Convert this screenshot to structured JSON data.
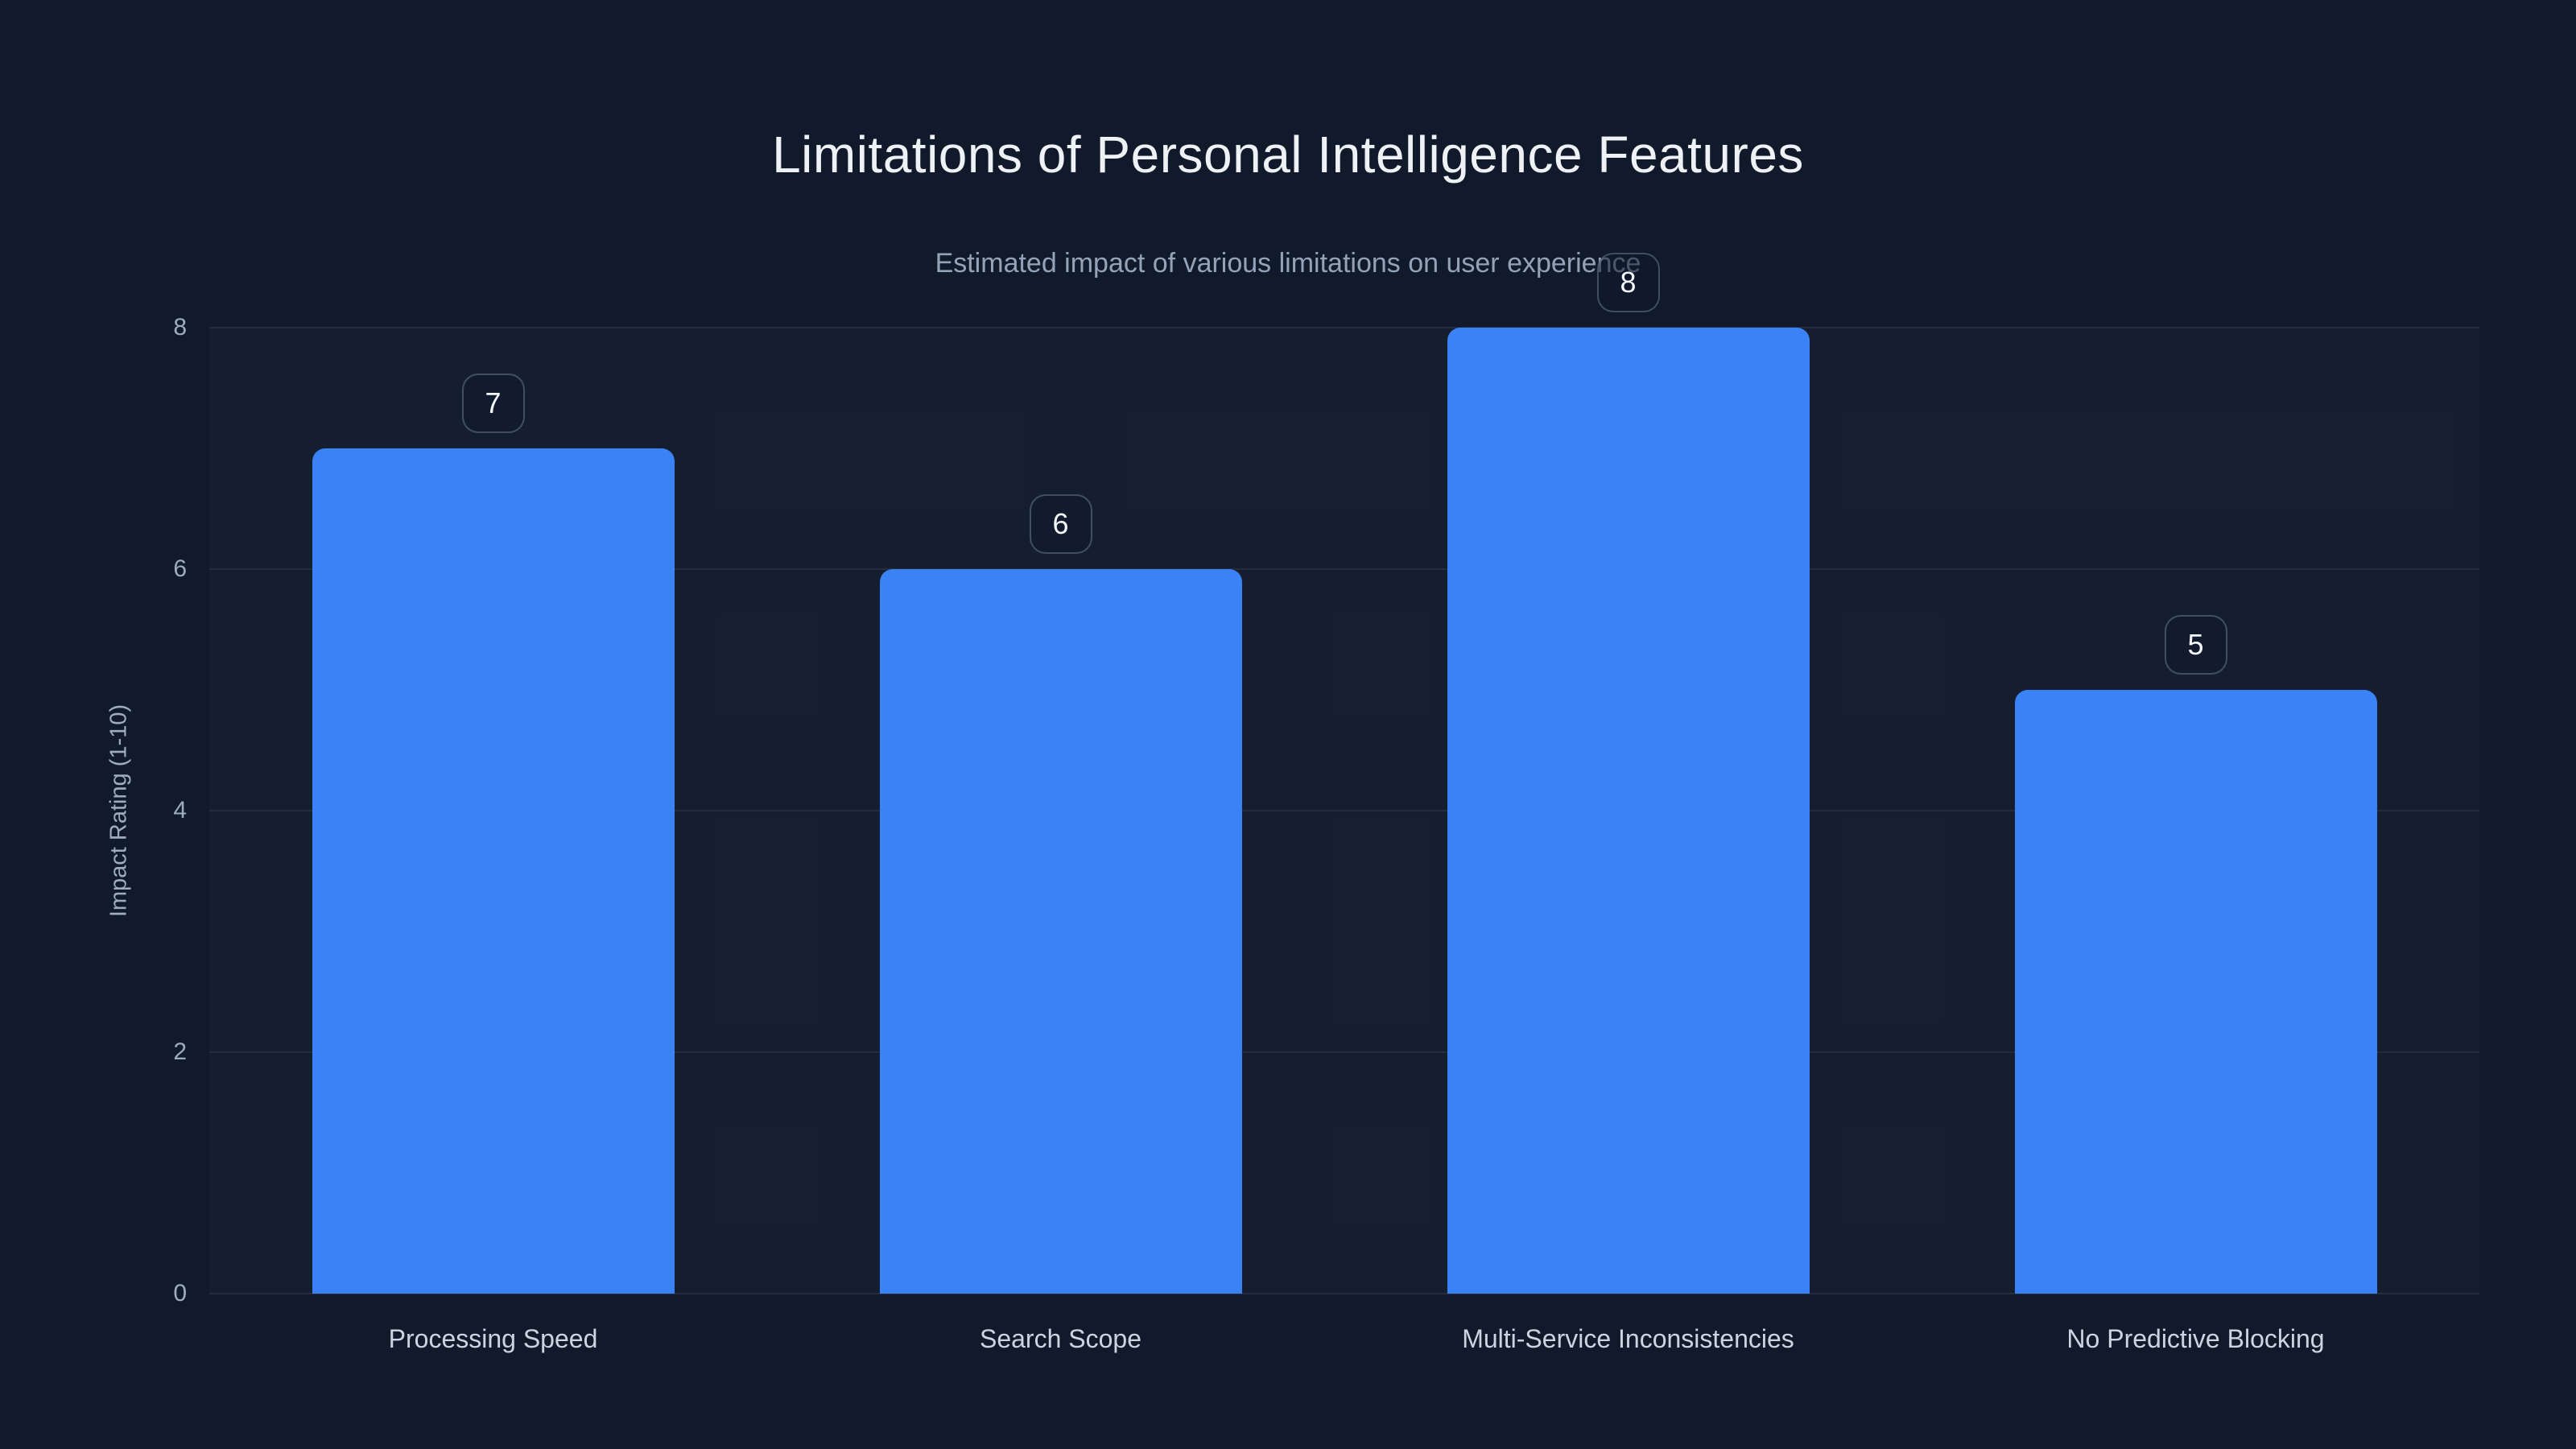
{
  "page": {
    "background_color": "#111a2b"
  },
  "chart_data": {
    "type": "bar",
    "title": "Limitations of Personal Intelligence Features",
    "subtitle": "Estimated impact of various limitations on user experience",
    "categories": [
      "Processing Speed",
      "Search Scope",
      "Multi-Service Inconsistencies",
      "No Predictive Blocking"
    ],
    "values": [
      7,
      6,
      8,
      5
    ],
    "xlabel": "",
    "ylabel": "Impact Rating (1-10)",
    "yticks": [
      0,
      2,
      4,
      6,
      8
    ],
    "ylim": [
      0,
      8
    ],
    "grid": true,
    "legend": false,
    "value_badges": true,
    "colors": {
      "background": "#111a2b",
      "bar": "#3b82f6",
      "grid": "#232d3e",
      "title": "#eef2f7",
      "subtitle": "#94a3b8",
      "tick_label": "#a0acbd",
      "category_label": "#cbd5e1",
      "badge_text": "#f5f8fc",
      "badge_border": "rgba(148,163,184,0.38)"
    }
  }
}
